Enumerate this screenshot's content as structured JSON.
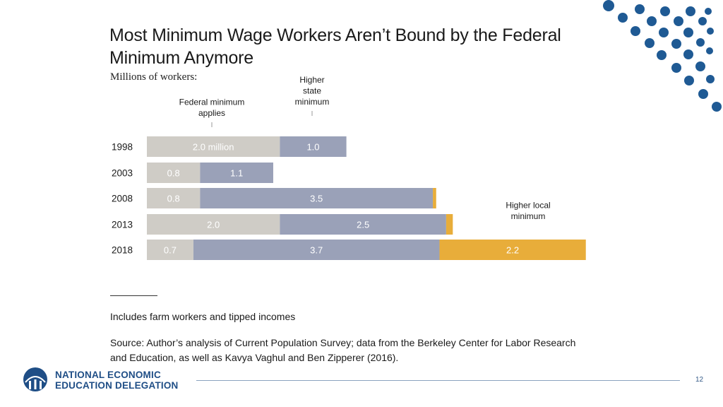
{
  "slide": {
    "title": "Most Minimum Wage Workers Aren’t Bound by the Federal Minimum Anymore",
    "subtitle": "Millions of workers:",
    "note": "Includes farm workers and tipped incomes",
    "source": "Source: Author’s analysis of Current Population Survey; data from the Berkeley Center for Labor Research and Education, as well as Kavya Vaghul and Ben Zipperer (2016).",
    "page_number": "12"
  },
  "branding": {
    "org_line1": "NATIONAL ECONOMIC",
    "org_line2": "EDUCATION DELEGATION",
    "accent_color": "#1f4e86"
  },
  "chart_data": {
    "type": "bar",
    "stacked": true,
    "orientation": "horizontal",
    "categories": [
      "1998",
      "2003",
      "2008",
      "2013",
      "2018"
    ],
    "series": [
      {
        "name": "Federal minimum applies",
        "color": "#cfccc6",
        "values": [
          2.0,
          0.8,
          0.8,
          2.0,
          0.7
        ],
        "labels": [
          "2.0 million",
          "0.8",
          "0.8",
          "2.0",
          "0.7"
        ]
      },
      {
        "name": "Higher state minimum",
        "color": "#9aa1b8",
        "values": [
          1.0,
          1.1,
          3.5,
          2.5,
          3.7
        ],
        "labels": [
          "1.0",
          "1.1",
          "3.5",
          "2.5",
          "3.7"
        ]
      },
      {
        "name": "Higher local minimum",
        "color": "#e8ad3a",
        "values": [
          0,
          0,
          0.05,
          0.1,
          2.2
        ],
        "labels": [
          "",
          "",
          "",
          "",
          "2.2"
        ]
      }
    ],
    "series_label_lines": [
      [
        "Federal minimum",
        "applies"
      ],
      [
        "Higher",
        "state",
        "minimum"
      ],
      [
        "Higher local",
        "minimum"
      ]
    ],
    "xlim": [
      0,
      6.6
    ],
    "grid": false,
    "legend": "inline annotations above bars"
  }
}
